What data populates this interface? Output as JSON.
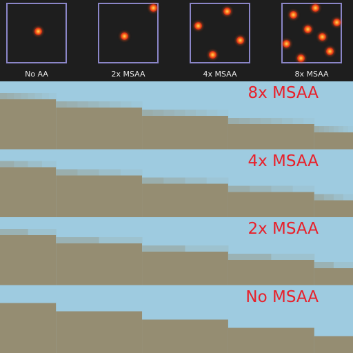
{
  "sample_patterns": [
    {
      "label": "No AA",
      "samples": [
        [
          0.53,
          0.47
        ]
      ]
    },
    {
      "label": "2x MSAA",
      "samples": [
        [
          0.93,
          0.06
        ],
        [
          0.44,
          0.55
        ]
      ]
    },
    {
      "label": "4x MSAA",
      "samples": [
        [
          0.63,
          0.13
        ],
        [
          0.13,
          0.38
        ],
        [
          0.85,
          0.63
        ],
        [
          0.38,
          0.88
        ]
      ]
    },
    {
      "label": "8x MSAA",
      "samples": [
        [
          0.56,
          0.06
        ],
        [
          0.19,
          0.19
        ],
        [
          0.94,
          0.31
        ],
        [
          0.44,
          0.44
        ],
        [
          0.69,
          0.56
        ],
        [
          0.06,
          0.69
        ],
        [
          0.81,
          0.81
        ],
        [
          0.31,
          0.94
        ]
      ]
    }
  ],
  "panels": [
    {
      "label": "8x MSAA",
      "levels": 8
    },
    {
      "label": "4x MSAA",
      "levels": 4
    },
    {
      "label": "2x MSAA",
      "levels": 2
    },
    {
      "label": "No MSAA",
      "levels": 1
    }
  ],
  "colors": {
    "sky": "#9ecbe0",
    "ground": "#958d72",
    "box_border": "#8b86c8",
    "panel_label": "#e8202a",
    "background": "#1e1e1e"
  }
}
